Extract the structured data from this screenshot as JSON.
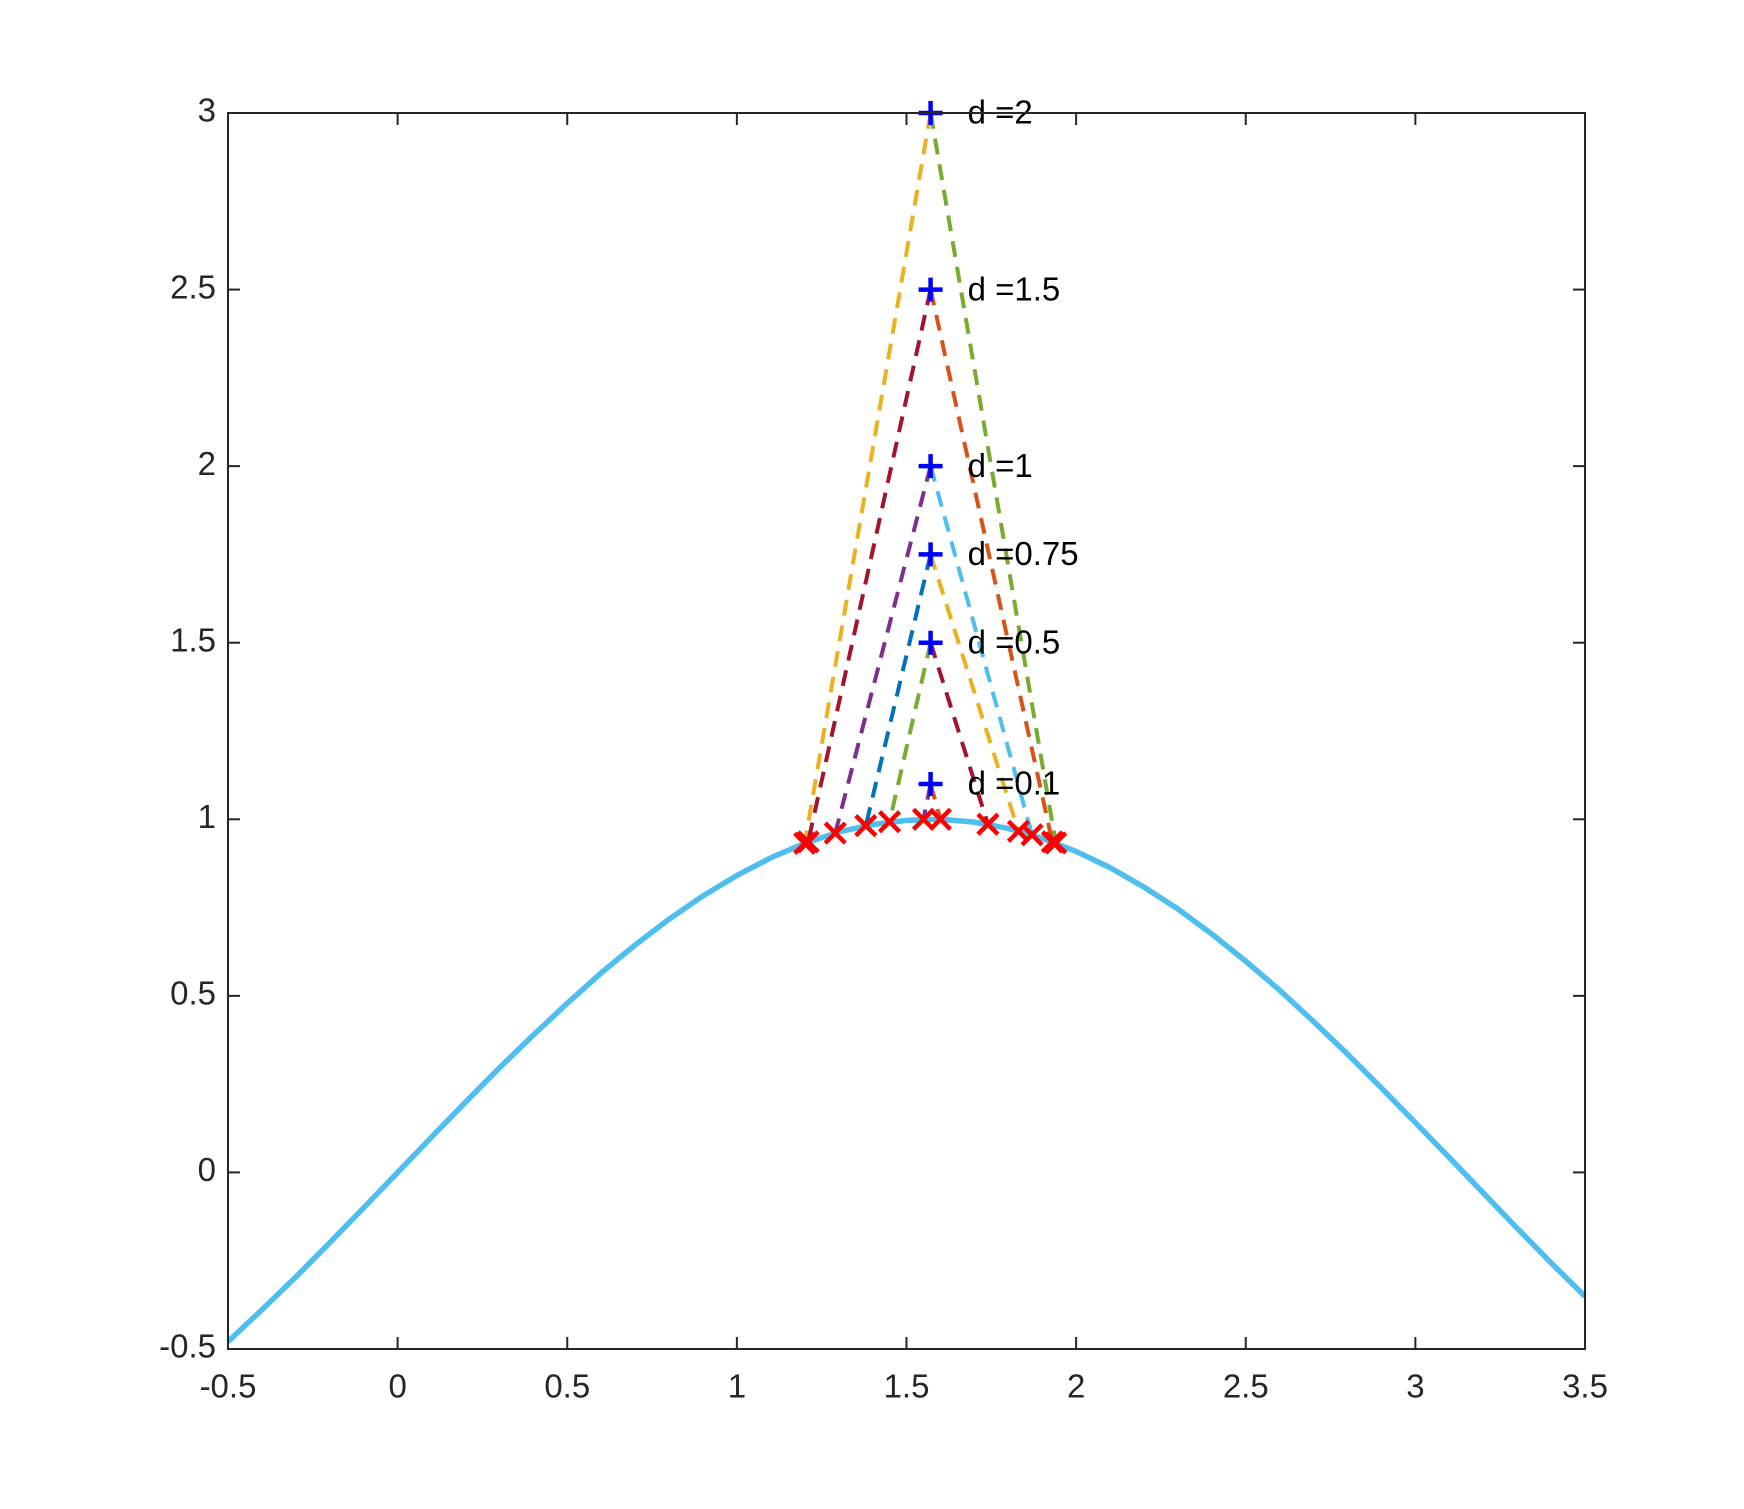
{
  "chart_data": {
    "type": "line",
    "xlim": [
      -0.5,
      3.5
    ],
    "ylim": [
      -0.5,
      3
    ],
    "xticks": [
      -0.5,
      0,
      0.5,
      1,
      1.5,
      2,
      2.5,
      3,
      3.5
    ],
    "yticks": [
      -0.5,
      0,
      0.5,
      1,
      1.5,
      2,
      2.5,
      3
    ],
    "box": true,
    "series": [
      {
        "color": "#4DBEEE",
        "style": "solid",
        "x": [
          -0.5,
          -0.4,
          -0.3,
          -0.2,
          -0.1,
          0,
          0.1,
          0.2,
          0.3,
          0.4,
          0.5,
          0.6,
          0.7,
          0.8,
          0.9,
          1.0,
          1.1,
          1.2,
          1.3,
          1.4,
          1.5,
          1.6,
          1.7,
          1.8,
          1.9,
          2.0,
          2.1,
          2.2,
          2.3,
          2.4,
          2.5,
          2.6,
          2.7,
          2.8,
          2.9,
          3.0,
          3.1,
          3.2,
          3.3,
          3.4,
          3.5
        ],
        "values": [
          -0.479,
          -0.389,
          -0.296,
          -0.199,
          -0.1,
          0,
          0.1,
          0.199,
          0.296,
          0.389,
          0.479,
          0.565,
          0.644,
          0.717,
          0.783,
          0.841,
          0.891,
          0.932,
          0.964,
          0.985,
          0.997,
          1.0,
          0.992,
          0.974,
          0.946,
          0.909,
          0.863,
          0.808,
          0.746,
          0.675,
          0.598,
          0.516,
          0.427,
          0.335,
          0.239,
          0.141,
          0.042,
          -0.058,
          -0.158,
          -0.256,
          -0.351
        ]
      },
      {
        "color": "#EDB120",
        "style": "dashed",
        "x": [
          1.571,
          1.2
        ],
        "values": [
          3,
          0.932
        ]
      },
      {
        "color": "#77AC30",
        "style": "dashed",
        "x": [
          1.571,
          1.94
        ],
        "values": [
          3,
          0.933
        ]
      },
      {
        "color": "#A2142F",
        "style": "dashed",
        "x": [
          1.571,
          1.21
        ],
        "values": [
          2.5,
          0.936
        ]
      },
      {
        "color": "#D95319",
        "style": "dashed",
        "x": [
          1.571,
          1.93
        ],
        "values": [
          2.5,
          0.936
        ]
      },
      {
        "color": "#7E2F8E",
        "style": "dashed",
        "x": [
          1.571,
          1.29
        ],
        "values": [
          2,
          0.961
        ]
      },
      {
        "color": "#4DBEEE",
        "style": "dashed",
        "x": [
          1.571,
          1.87
        ],
        "values": [
          2,
          0.956
        ]
      },
      {
        "color": "#0072BD",
        "style": "dashed",
        "x": [
          1.571,
          1.38
        ],
        "values": [
          1.75,
          0.982
        ]
      },
      {
        "color": "#EDB120",
        "style": "dashed",
        "x": [
          1.571,
          1.83
        ],
        "values": [
          1.75,
          0.966
        ]
      },
      {
        "color": "#77AC30",
        "style": "dashed",
        "x": [
          1.571,
          1.45
        ],
        "values": [
          1.5,
          0.993
        ]
      },
      {
        "color": "#A2142F",
        "style": "dashed",
        "x": [
          1.571,
          1.74
        ],
        "values": [
          1.5,
          0.986
        ]
      },
      {
        "color": "#7E2F8E",
        "style": "dashed",
        "x": [
          1.571,
          1.55
        ],
        "values": [
          1.1,
          1.0
        ]
      },
      {
        "color": "#D95319",
        "style": "dashed",
        "x": [
          1.571,
          1.6
        ],
        "values": [
          1.1,
          1.0
        ]
      },
      {
        "color": "#FF0000",
        "marker": "x",
        "x": [
          1.2,
          1.21,
          1.29,
          1.38,
          1.45,
          1.55,
          1.6,
          1.74,
          1.83,
          1.87,
          1.93,
          1.94
        ],
        "values": [
          0.932,
          0.936,
          0.961,
          0.982,
          0.993,
          1.0,
          1.0,
          0.986,
          0.966,
          0.956,
          0.936,
          0.933
        ]
      },
      {
        "color": "#0000FF",
        "marker": "+",
        "x": [
          1.571,
          1.571,
          1.571,
          1.571,
          1.571,
          1.571
        ],
        "values": [
          3,
          2.5,
          2,
          1.75,
          1.5,
          1.1
        ],
        "labels": [
          "d =2",
          "d =1.5",
          "d =1",
          "d =0.75",
          "d =0.5",
          "d =0.1"
        ]
      }
    ]
  }
}
